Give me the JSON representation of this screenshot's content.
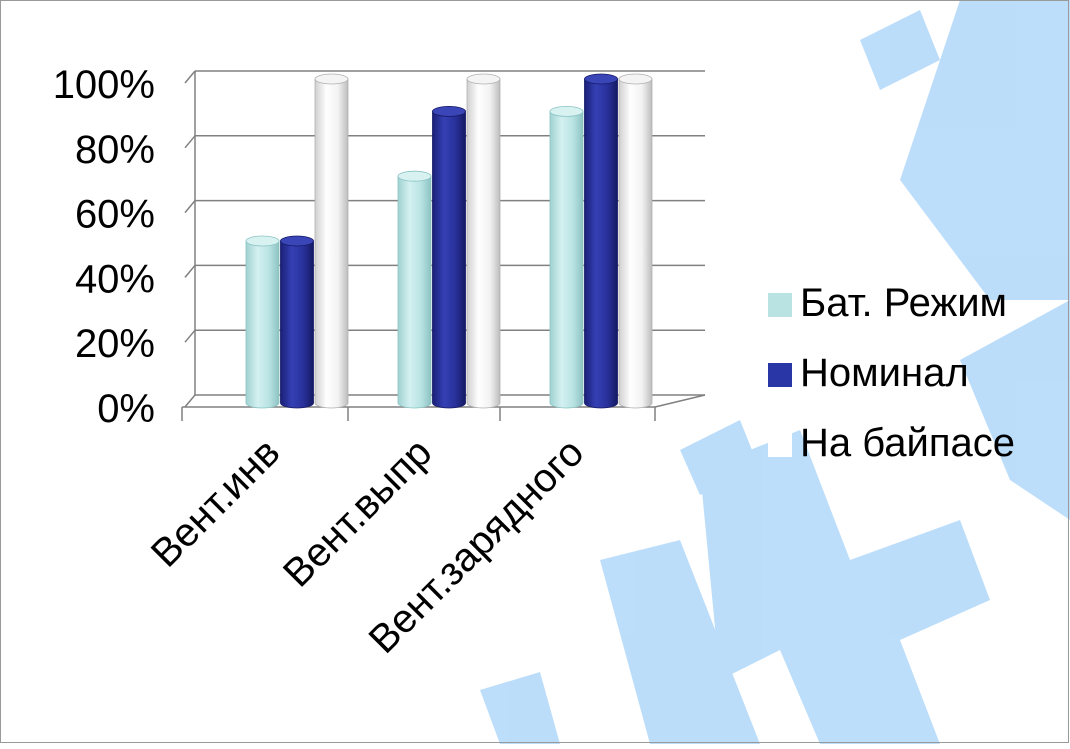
{
  "chart_data": {
    "type": "bar",
    "categories": [
      "Вент.инв",
      "Вент.выпр",
      "Вент.зарядного"
    ],
    "series": [
      {
        "name": "Бат. Режим",
        "values": [
          50,
          70,
          90
        ]
      },
      {
        "name": "Номинал",
        "values": [
          50,
          90,
          100
        ]
      },
      {
        "name": "На байпасе",
        "values": [
          100,
          100,
          100
        ]
      }
    ],
    "ylim": [
      0,
      100
    ],
    "y_ticks": [
      "0%",
      "20%",
      "40%",
      "60%",
      "80%",
      "100%"
    ],
    "y_tick_values": [
      0,
      20,
      40,
      60,
      80,
      100
    ],
    "grid": true,
    "style": "3d-cylinder",
    "legend_position": "right",
    "colors": {
      "series_fill": [
        "#b9e3e3",
        "#28309a",
        "#ffffff"
      ],
      "series_top": [
        "#d8f1f1",
        "#3a46b8",
        "#f4f4f4"
      ],
      "series_edge": [
        "#8cc4c4",
        "#151a66",
        "#b0b0b0"
      ],
      "legend_swatch": [
        "#b9e3e3",
        "#2836a6",
        "#ffffff"
      ],
      "grid": "#808080",
      "watermark": "#b8dcfa"
    }
  }
}
